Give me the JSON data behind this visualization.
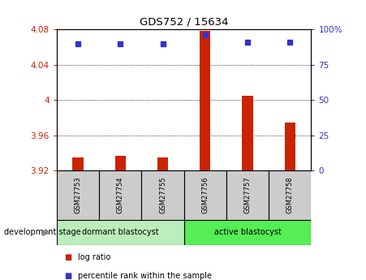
{
  "title": "GDS752 / 15634",
  "samples": [
    "GSM27753",
    "GSM27754",
    "GSM27755",
    "GSM27756",
    "GSM27757",
    "GSM27758"
  ],
  "log_ratio": [
    3.935,
    3.937,
    3.935,
    4.078,
    4.005,
    3.975
  ],
  "percentile_rank": [
    90,
    90,
    90,
    96,
    91,
    91
  ],
  "ylim_left": [
    3.92,
    4.08
  ],
  "ylim_right": [
    0,
    100
  ],
  "yticks_left": [
    3.92,
    3.96,
    4.0,
    4.04,
    4.08
  ],
  "yticks_left_labels": [
    "3.92",
    "3.96",
    "4",
    "4.04",
    "4.08"
  ],
  "yticks_right": [
    0,
    25,
    50,
    75,
    100
  ],
  "yticks_right_labels": [
    "0",
    "25",
    "50",
    "75",
    "100%"
  ],
  "bar_color": "#cc2200",
  "dot_color": "#3333cc",
  "grid_ticks": [
    3.96,
    4.0,
    4.04
  ],
  "group1_label": "dormant blastocyst",
  "group2_label": "active blastocyst",
  "group1_indices": [
    0,
    1,
    2
  ],
  "group2_indices": [
    3,
    4,
    5
  ],
  "group1_color": "#bbeebb",
  "group2_color": "#55ee55",
  "xlabel_bottom": "development stage",
  "legend_bar": "log ratio",
  "legend_dot": "percentile rank within the sample",
  "bg_color": "#ffffff",
  "plot_bg": "#ffffff",
  "tick_box_color": "#cccccc",
  "bar_width": 0.25
}
